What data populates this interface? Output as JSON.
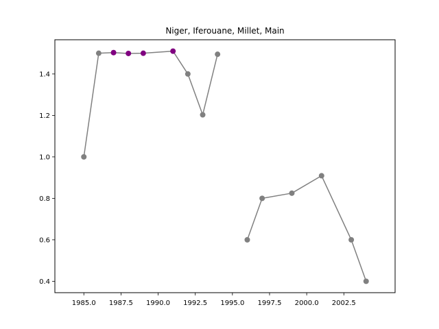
{
  "chart_data": {
    "type": "line",
    "title": "Niger, Iferouane, Millet, Main",
    "xlabel": "",
    "ylabel": "",
    "xlim": [
      1983.05,
      2005.95
    ],
    "ylim": [
      0.345,
      1.565
    ],
    "x_ticks": [
      1985.0,
      1987.5,
      1990.0,
      1992.5,
      1995.0,
      1997.5,
      2000.0,
      2002.5
    ],
    "x_tick_labels": [
      "1985.0",
      "1987.5",
      "1990.0",
      "1992.5",
      "1995.0",
      "1997.5",
      "2000.0",
      "2002.5"
    ],
    "y_ticks": [
      0.4,
      0.6,
      0.8,
      1.0,
      1.2,
      1.4
    ],
    "y_tick_labels": [
      "0.4",
      "0.6",
      "0.8",
      "1.0",
      "1.2",
      "1.4"
    ],
    "grid": false,
    "line_color": "#808080",
    "segments": [
      {
        "x": [
          1985,
          1986,
          1987,
          1988,
          1989,
          1991,
          1992,
          1993,
          1994
        ],
        "y": [
          1.0,
          1.5,
          1.503,
          1.499,
          1.5,
          1.51,
          1.4,
          1.203,
          1.495
        ]
      },
      {
        "x": [
          1996,
          1997,
          1999,
          2001,
          2003,
          2004
        ],
        "y": [
          0.6,
          0.8,
          0.825,
          0.909,
          0.6,
          0.4
        ]
      }
    ],
    "points": [
      {
        "x": 1985,
        "y": 1.0,
        "color": "#808080"
      },
      {
        "x": 1986,
        "y": 1.5,
        "color": "#808080"
      },
      {
        "x": 1987,
        "y": 1.503,
        "color": "#800080"
      },
      {
        "x": 1988,
        "y": 1.499,
        "color": "#800080"
      },
      {
        "x": 1989,
        "y": 1.5,
        "color": "#800080"
      },
      {
        "x": 1991,
        "y": 1.51,
        "color": "#800080"
      },
      {
        "x": 1992,
        "y": 1.4,
        "color": "#808080"
      },
      {
        "x": 1993,
        "y": 1.203,
        "color": "#808080"
      },
      {
        "x": 1994,
        "y": 1.495,
        "color": "#808080"
      },
      {
        "x": 1996,
        "y": 0.6,
        "color": "#808080"
      },
      {
        "x": 1997,
        "y": 0.8,
        "color": "#808080"
      },
      {
        "x": 1999,
        "y": 0.825,
        "color": "#808080"
      },
      {
        "x": 2001,
        "y": 0.909,
        "color": "#808080"
      },
      {
        "x": 2003,
        "y": 0.6,
        "color": "#808080"
      },
      {
        "x": 2004,
        "y": 0.4,
        "color": "#808080"
      }
    ]
  }
}
